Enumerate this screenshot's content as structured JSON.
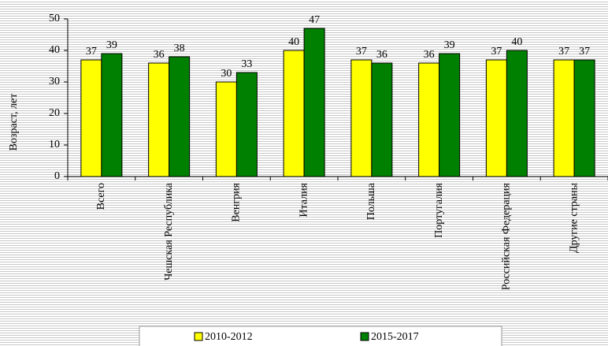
{
  "chart_data": {
    "type": "bar",
    "ylabel": "Возраст, лет",
    "categories": [
      "Всего",
      "Чешская Республика",
      "Венгрия",
      "Италия",
      "Польша",
      "Португалия",
      "Российская Федерация",
      "Другие страны"
    ],
    "series": [
      {
        "name": "2010-2012",
        "color": "#ffff00",
        "values": [
          37,
          36,
          30,
          40,
          37,
          36,
          37,
          37
        ]
      },
      {
        "name": "2015-2017",
        "color": "#008000",
        "values": [
          39,
          38,
          33,
          47,
          36,
          39,
          40,
          37
        ]
      }
    ],
    "ylim": [
      0,
      50
    ],
    "yticks": [
      0,
      10,
      20,
      30,
      40,
      50
    ]
  }
}
